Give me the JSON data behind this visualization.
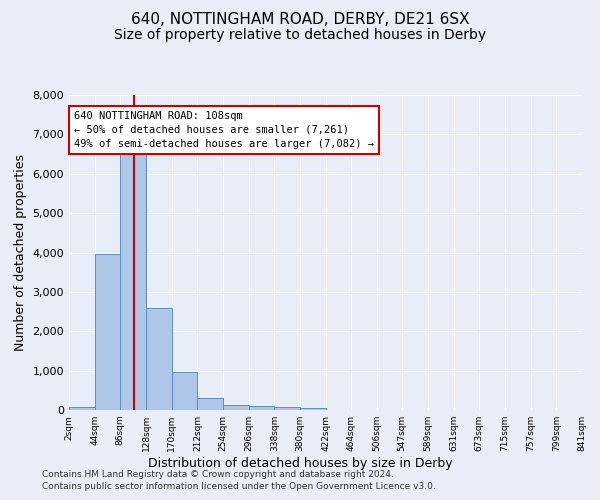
{
  "title1": "640, NOTTINGHAM ROAD, DERBY, DE21 6SX",
  "title2": "Size of property relative to detached houses in Derby",
  "xlabel": "Distribution of detached houses by size in Derby",
  "ylabel": "Number of detached properties",
  "footnote1": "Contains HM Land Registry data © Crown copyright and database right 2024.",
  "footnote2": "Contains public sector information licensed under the Open Government Licence v3.0.",
  "annotation_line1": "640 NOTTINGHAM ROAD: 108sqm",
  "annotation_line2": "← 50% of detached houses are smaller (7,261)",
  "annotation_line3": "49% of semi-detached houses are larger (7,082) →",
  "bar_color": "#aec6e8",
  "bar_edge_color": "#5a8fc0",
  "vline_color": "#cc0000",
  "vline_x": 108,
  "bin_edges": [
    2,
    44,
    86,
    128,
    170,
    212,
    254,
    296,
    338,
    380,
    422,
    464,
    506,
    547,
    589,
    631,
    673,
    715,
    757,
    799,
    841
  ],
  "bar_heights": [
    75,
    3950,
    6550,
    2600,
    960,
    300,
    130,
    100,
    80,
    50,
    0,
    0,
    0,
    0,
    0,
    0,
    0,
    0,
    0,
    0
  ],
  "ylim": [
    0,
    8000
  ],
  "yticks": [
    0,
    1000,
    2000,
    3000,
    4000,
    5000,
    6000,
    7000,
    8000
  ],
  "bg_color": "#e8edf7",
  "plot_bg_color": "#e8edf7",
  "grid_color": "#ffffff",
  "title1_fontsize": 11,
  "title2_fontsize": 10,
  "xlabel_fontsize": 9,
  "ylabel_fontsize": 9,
  "footnote_fontsize": 6.5
}
